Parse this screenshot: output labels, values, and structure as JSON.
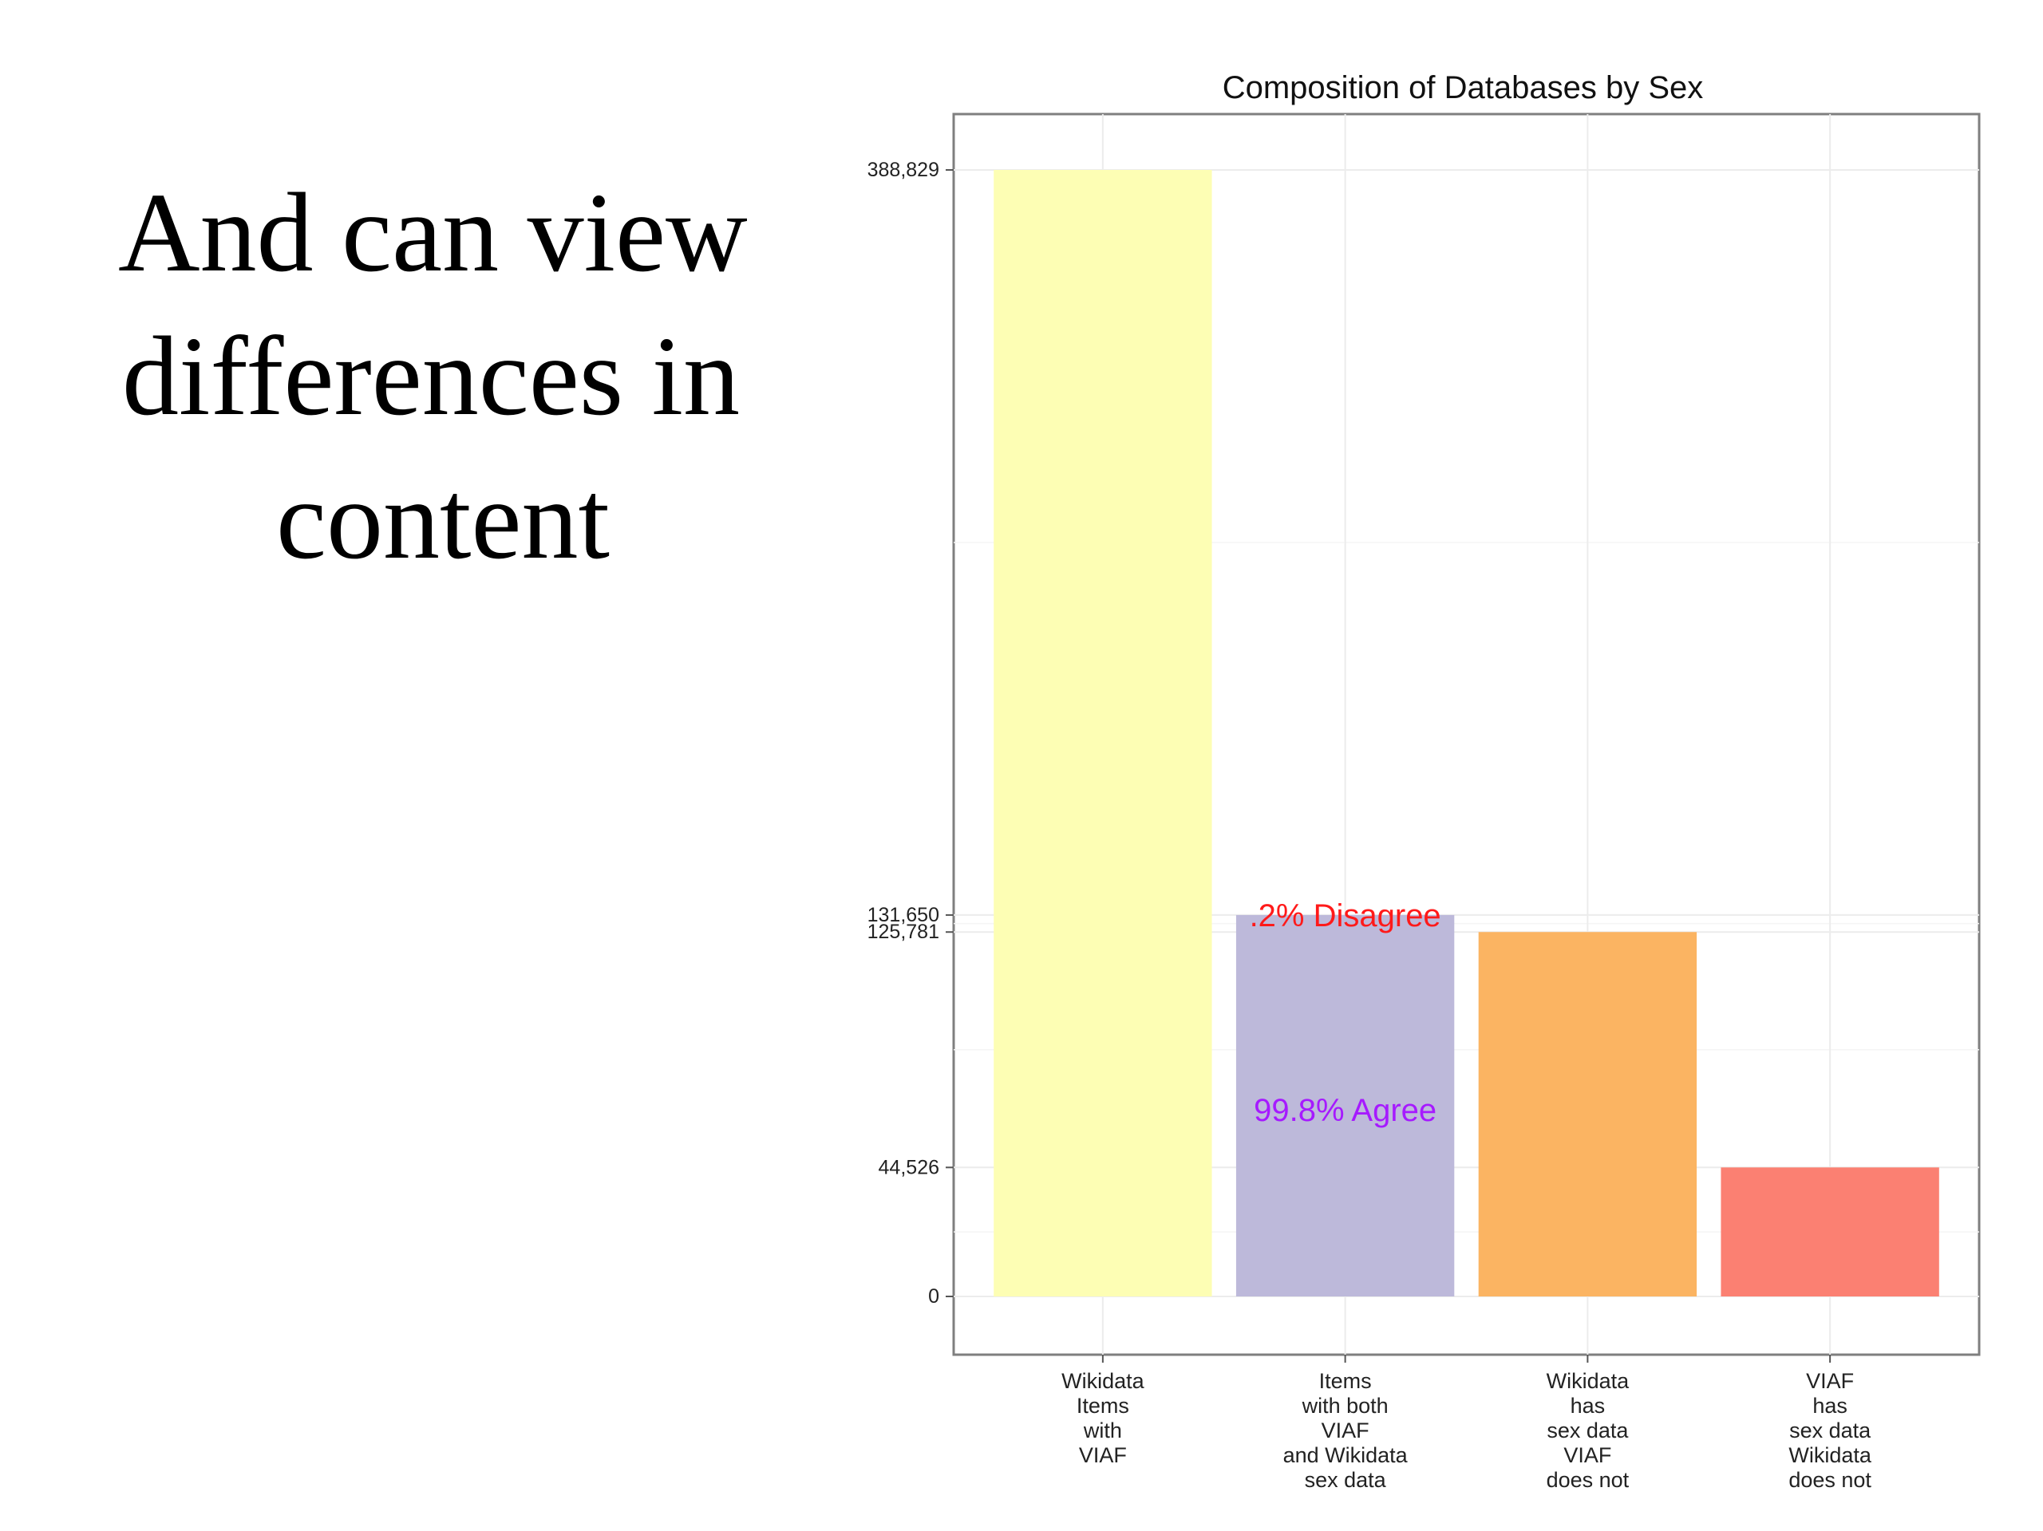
{
  "slide": {
    "title_lines": [
      "And can view",
      "differences in",
      "content"
    ]
  },
  "chart_data": {
    "type": "bar",
    "title": "Composition of Databases by Sex",
    "xlabel": "",
    "ylabel": "",
    "categories": [
      "Wikidata\nItems\nwith\nVIAF",
      "Items\nwith both\nVIAF\nand Wikidata\nsex data",
      "Wikidata\nhas\nsex data\nVIAF\ndoes not",
      "VIAF\nhas\nsex data\nWikidata\ndoes not"
    ],
    "values": [
      388829,
      131650,
      125781,
      44526
    ],
    "colors": [
      "#fdfeb4",
      "#bdb9da",
      "#fbb462",
      "#fb8072"
    ],
    "ylim": [
      0,
      388829
    ],
    "y_ticks": [
      0,
      44526,
      125781,
      131650,
      388829
    ],
    "y_tick_labels": [
      "0",
      "44,526",
      "125,781",
      "131,650",
      "388,829"
    ],
    "grid": true,
    "annotations": [
      {
        "text": ".2% Disagree",
        "color": "#ff1a1a",
        "category_index": 1,
        "y": 131650
      },
      {
        "text": "99.8% Agree",
        "color": "#a61aff",
        "category_index": 1,
        "y": 64500
      }
    ]
  }
}
